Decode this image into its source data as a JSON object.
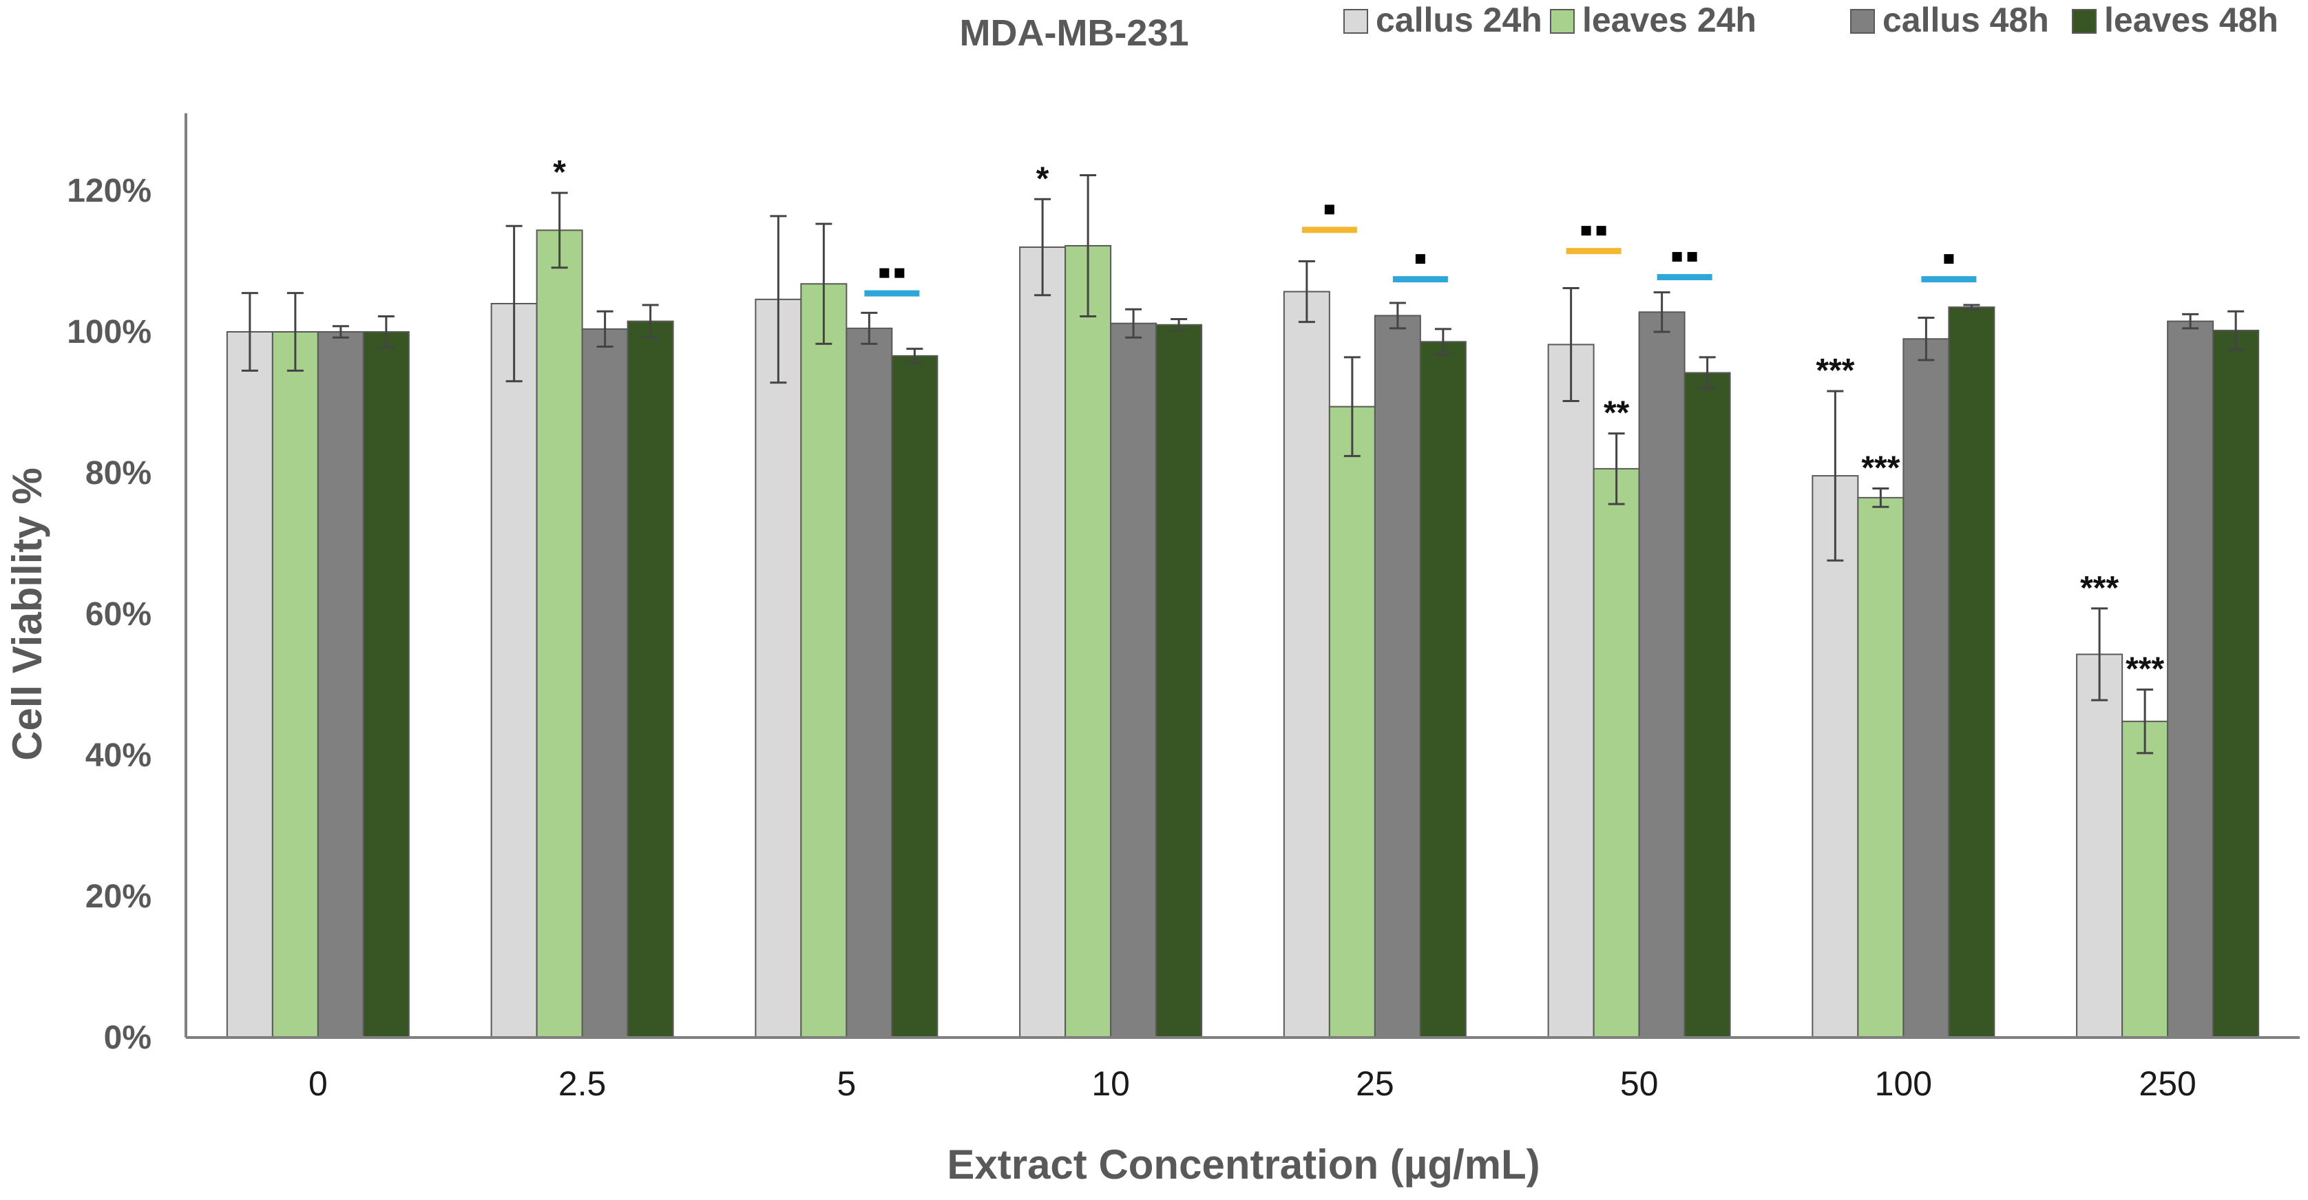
{
  "chart_data": {
    "type": "bar",
    "title": "MDA-MB-231",
    "xlabel": "Extract Concentration (µg/mL)",
    "ylabel": "Cell Viability %",
    "ylim": [
      0,
      130
    ],
    "yticks": [
      0,
      20,
      40,
      60,
      80,
      100,
      120
    ],
    "ytick_labels": [
      "0%",
      "20%",
      "40%",
      "60%",
      "80%",
      "100%",
      "120%"
    ],
    "categories": [
      "0",
      "2.5",
      "5",
      "10",
      "25",
      "50",
      "100",
      "250"
    ],
    "legend_position": "top-right",
    "grid": false,
    "series": [
      {
        "name": "callus 24h",
        "color": "#d9d9d9",
        "values": [
          100,
          104,
          104.6,
          112,
          105.7,
          98.2,
          79.6,
          54.3
        ],
        "errors": [
          5.5,
          11,
          11.8,
          6.8,
          4.3,
          8,
          12,
          6.5
        ]
      },
      {
        "name": "leaves 24h",
        "color": "#a9d18e",
        "values": [
          100,
          114.4,
          106.8,
          112.2,
          89.4,
          80.6,
          76.5,
          44.8
        ],
        "errors": [
          5.5,
          5.3,
          8.5,
          10,
          7,
          5,
          1.3,
          4.5
        ]
      },
      {
        "name": "callus 48h",
        "color": "#808080",
        "values": [
          100,
          100.4,
          100.5,
          101.2,
          102.3,
          102.8,
          99,
          101.5
        ],
        "errors": [
          0.8,
          2.5,
          2.2,
          2,
          1.8,
          2.8,
          3,
          1
        ]
      },
      {
        "name": "leaves 48h",
        "color": "#375623",
        "values": [
          100,
          101.5,
          96.6,
          101,
          98.6,
          94.2,
          103.5,
          100.2
        ],
        "errors": [
          2.2,
          2.3,
          1,
          0.8,
          1.8,
          2.2,
          0.3,
          2.7
        ]
      }
    ],
    "annotations": [
      {
        "category": "2.5",
        "series": "leaves 24h",
        "text": "*"
      },
      {
        "category": "10",
        "series": "callus 24h",
        "text": "*"
      },
      {
        "category": "50",
        "series": "leaves 24h",
        "text": "**"
      },
      {
        "category": "100",
        "series": "callus 24h",
        "text": "***"
      },
      {
        "category": "100",
        "series": "leaves 24h",
        "text": "***"
      },
      {
        "category": "250",
        "series": "callus 24h",
        "text": "***"
      },
      {
        "category": "250",
        "series": "leaves 24h",
        "text": "***"
      }
    ],
    "comparison_markers": [
      {
        "category": "5",
        "pair": "48h",
        "color": "#2ea6d8",
        "dots": 2,
        "y": 105.5
      },
      {
        "category": "25",
        "pair": "24h",
        "color": "#f2b833",
        "dots": 1,
        "y": 114.5
      },
      {
        "category": "25",
        "pair": "48h",
        "color": "#2ea6d8",
        "dots": 1,
        "y": 107.5
      },
      {
        "category": "50",
        "pair": "24h",
        "color": "#f2b833",
        "dots": 2,
        "y": 111.5
      },
      {
        "category": "50",
        "pair": "48h",
        "color": "#2ea6d8",
        "dots": 2,
        "y": 107.8
      },
      {
        "category": "100",
        "pair": "48h",
        "color": "#2ea6d8",
        "dots": 1,
        "y": 107.5
      }
    ]
  }
}
